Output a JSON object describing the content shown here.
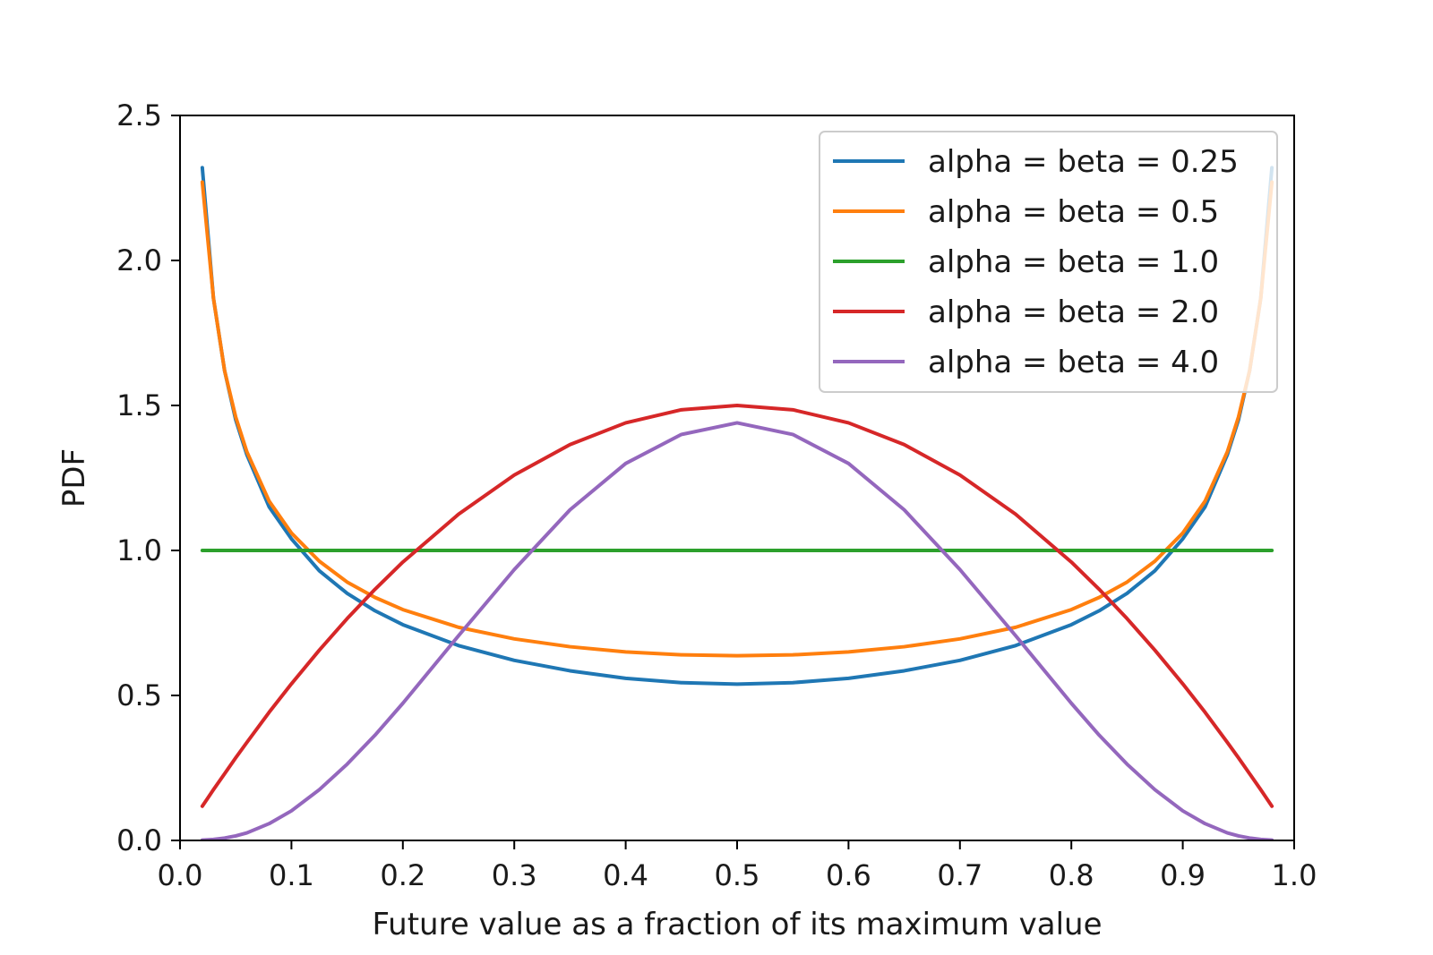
{
  "chart_data": {
    "type": "line",
    "title": "",
    "xlabel": "Future value as a fraction of its maximum value",
    "ylabel": "PDF",
    "xlim": [
      0.0,
      1.0
    ],
    "ylim": [
      0.0,
      2.5
    ],
    "xticks": [
      0.0,
      0.1,
      0.2,
      0.3,
      0.4,
      0.5,
      0.6,
      0.7,
      0.8,
      0.9,
      1.0
    ],
    "xtick_labels": [
      "0.0",
      "0.1",
      "0.2",
      "0.3",
      "0.4",
      "0.5",
      "0.6",
      "0.7",
      "0.8",
      "0.9",
      "1.0"
    ],
    "yticks": [
      0.0,
      0.5,
      1.0,
      1.5,
      2.0,
      2.5
    ],
    "ytick_labels": [
      "0.0",
      "0.5",
      "1.0",
      "1.5",
      "2.0",
      "2.5"
    ],
    "grid": false,
    "legend_position": "upper right",
    "x": [
      0.02,
      0.03,
      0.04,
      0.05,
      0.06,
      0.08,
      0.1,
      0.125,
      0.15,
      0.175,
      0.2,
      0.25,
      0.3,
      0.35,
      0.4,
      0.45,
      0.5,
      0.55,
      0.6,
      0.65,
      0.7,
      0.75,
      0.8,
      0.825,
      0.85,
      0.875,
      0.9,
      0.92,
      0.94,
      0.95,
      0.96,
      0.97,
      0.98
    ],
    "series": [
      {
        "name": "alpha = beta = 0.25",
        "color": "#1f77b4",
        "values": [
          2.32,
          1.87,
          1.62,
          1.45,
          1.33,
          1.15,
          1.04,
          0.93,
          0.852,
          0.792,
          0.744,
          0.672,
          0.621,
          0.585,
          0.559,
          0.544,
          0.539,
          0.544,
          0.559,
          0.585,
          0.621,
          0.672,
          0.744,
          0.792,
          0.852,
          0.93,
          1.04,
          1.15,
          1.33,
          1.45,
          1.62,
          1.87,
          2.32
        ]
      },
      {
        "name": "alpha = beta = 0.5",
        "color": "#ff7f0e",
        "values": [
          2.27,
          1.87,
          1.62,
          1.46,
          1.34,
          1.17,
          1.06,
          0.963,
          0.891,
          0.838,
          0.796,
          0.735,
          0.695,
          0.668,
          0.65,
          0.64,
          0.637,
          0.64,
          0.65,
          0.668,
          0.695,
          0.735,
          0.796,
          0.838,
          0.891,
          0.963,
          1.06,
          1.17,
          1.34,
          1.46,
          1.62,
          1.87,
          2.27
        ]
      },
      {
        "name": "alpha = beta = 1.0",
        "color": "#2ca02c",
        "values": [
          1.0,
          1.0,
          1.0,
          1.0,
          1.0,
          1.0,
          1.0,
          1.0,
          1.0,
          1.0,
          1.0,
          1.0,
          1.0,
          1.0,
          1.0,
          1.0,
          1.0,
          1.0,
          1.0,
          1.0,
          1.0,
          1.0,
          1.0,
          1.0,
          1.0,
          1.0,
          1.0,
          1.0,
          1.0,
          1.0,
          1.0,
          1.0,
          1.0
        ]
      },
      {
        "name": "alpha = beta = 2.0",
        "color": "#d62728",
        "values": [
          0.118,
          0.175,
          0.23,
          0.285,
          0.338,
          0.442,
          0.54,
          0.656,
          0.765,
          0.866,
          0.96,
          1.125,
          1.26,
          1.365,
          1.44,
          1.485,
          1.5,
          1.485,
          1.44,
          1.365,
          1.26,
          1.125,
          0.96,
          0.866,
          0.765,
          0.656,
          0.54,
          0.442,
          0.338,
          0.285,
          0.23,
          0.175,
          0.118
        ]
      },
      {
        "name": "alpha = beta = 4.0",
        "color": "#9467bd",
        "values": [
          0.0011,
          0.0036,
          0.0083,
          0.0157,
          0.026,
          0.058,
          0.102,
          0.175,
          0.263,
          0.363,
          0.473,
          0.706,
          0.934,
          1.14,
          1.3,
          1.4,
          1.44,
          1.4,
          1.3,
          1.14,
          0.934,
          0.706,
          0.473,
          0.363,
          0.263,
          0.175,
          0.102,
          0.058,
          0.026,
          0.0157,
          0.0083,
          0.0036,
          0.0011
        ]
      }
    ]
  }
}
